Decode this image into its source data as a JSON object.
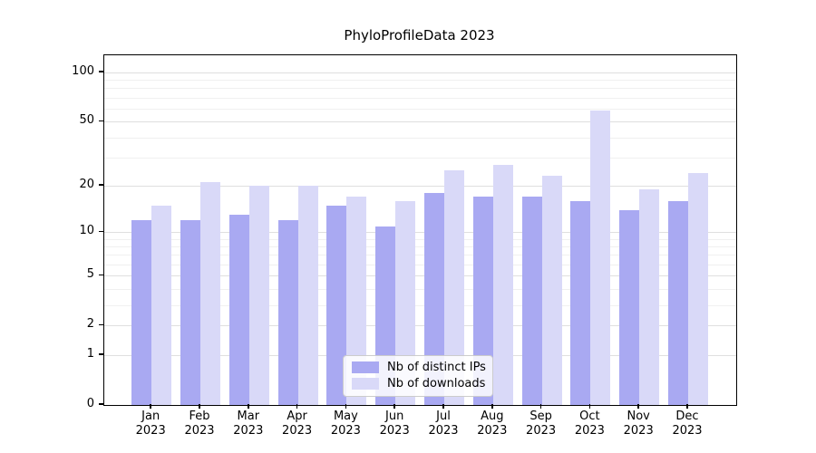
{
  "title": "PhyloProfileData 2023",
  "legend": {
    "items": [
      {
        "label": "Nb of distinct IPs",
        "color": "#a9a9f2"
      },
      {
        "label": "Nb of downloads",
        "color": "#d9d9f8"
      }
    ]
  },
  "chart_data": {
    "type": "bar",
    "title": "PhyloProfileData 2023",
    "categories": [
      "Jan 2023",
      "Feb 2023",
      "Mar 2023",
      "Apr 2023",
      "May 2023",
      "Jun 2023",
      "Jul 2023",
      "Aug 2023",
      "Sep 2023",
      "Oct 2023",
      "Nov 2023",
      "Dec 2023"
    ],
    "x_labels": [
      {
        "line1": "Jan",
        "line2": "2023"
      },
      {
        "line1": "Feb",
        "line2": "2023"
      },
      {
        "line1": "Mar",
        "line2": "2023"
      },
      {
        "line1": "Apr",
        "line2": "2023"
      },
      {
        "line1": "May",
        "line2": "2023"
      },
      {
        "line1": "Jun",
        "line2": "2023"
      },
      {
        "line1": "Jul",
        "line2": "2023"
      },
      {
        "line1": "Aug",
        "line2": "2023"
      },
      {
        "line1": "Sep",
        "line2": "2023"
      },
      {
        "line1": "Oct",
        "line2": "2023"
      },
      {
        "line1": "Nov",
        "line2": "2023"
      },
      {
        "line1": "Dec",
        "line2": "2023"
      }
    ],
    "series": [
      {
        "name": "Nb of distinct IPs",
        "color": "#a9a9f2",
        "values": [
          12,
          12,
          13,
          12,
          15,
          11,
          18,
          17,
          17,
          16,
          14,
          16
        ]
      },
      {
        "name": "Nb of downloads",
        "color": "#d9d9f8",
        "values": [
          15,
          21,
          20,
          20,
          17,
          16,
          25,
          27,
          23,
          59,
          19,
          24
        ]
      }
    ],
    "xlabel": "",
    "ylabel": "",
    "yscale": "log1p",
    "ylim": [
      0,
      130
    ],
    "yticks": [
      0,
      1,
      2,
      5,
      10,
      20,
      50,
      100
    ],
    "minor_gridlines": [
      3,
      4,
      6,
      7,
      8,
      9,
      30,
      40,
      60,
      70,
      80,
      90
    ],
    "grid": true,
    "legend_position": "lower center"
  },
  "colors": {
    "background": "#ffffff",
    "bar_distinct_ips": "#a9a9f2",
    "bar_downloads": "#d9d9f8",
    "grid_major": "#d6d6d6",
    "grid_minor": "#eaeaea",
    "axis": "#000000",
    "legend_border": "#cccccc"
  }
}
